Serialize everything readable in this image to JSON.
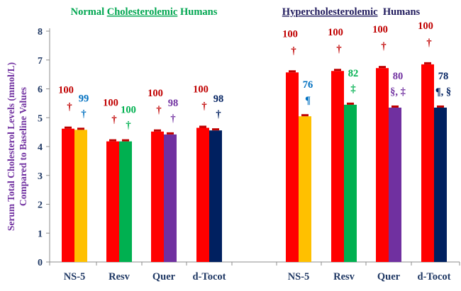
{
  "chart_data": {
    "type": "bar",
    "ylabel_line1": "Serum Total Cholesterol Levels (mmol/L)",
    "ylabel_line2": "Compared to Baseline Values",
    "ylim": [
      0,
      8
    ],
    "yticks": [
      0,
      1,
      2,
      3,
      4,
      5,
      6,
      7,
      8
    ],
    "grid": false,
    "groups": [
      {
        "title_parts": [
          {
            "text": "Normal ",
            "underline": false
          },
          {
            "text": "Cholesterolemic",
            "underline": true
          },
          {
            "text": " Humans",
            "underline": false
          }
        ],
        "title_color": "#00a650",
        "categories": [
          "NS-5",
          "Resv",
          "Quer",
          "d-Tocot"
        ],
        "baseline_values": [
          4.62,
          4.18,
          4.52,
          4.65
        ],
        "treated_values": [
          4.58,
          4.18,
          4.42,
          4.56
        ],
        "treated_colors": [
          "#ffc000",
          "#00b050",
          "#7030a0",
          "#002060"
        ],
        "baseline_labels": [
          "100",
          "100",
          "100",
          "100"
        ],
        "baseline_symbols": [
          "†",
          "†",
          "†",
          "†"
        ],
        "treated_labels": [
          "99",
          "100",
          "98",
          "98"
        ],
        "treated_symbols": [
          "†",
          "†",
          "†",
          "†"
        ],
        "treated_label_colors": [
          "#0070c0",
          "#00b050",
          "#7030a0",
          "#002060"
        ]
      },
      {
        "title_parts": [
          {
            "text": "Hypercholesterolemic",
            "underline": true
          },
          {
            "text": "  Humans",
            "underline": false
          }
        ],
        "title_color": "#1f1a5c",
        "categories": [
          "NS-5",
          "Resv",
          "Quer",
          "d-Tocot"
        ],
        "baseline_values": [
          6.57,
          6.62,
          6.72,
          6.85
        ],
        "treated_values": [
          5.05,
          5.45,
          5.35,
          5.35
        ],
        "treated_colors": [
          "#ffc000",
          "#00b050",
          "#7030a0",
          "#002060"
        ],
        "baseline_labels": [
          "100",
          "100",
          "100",
          "100"
        ],
        "baseline_symbols": [
          "†",
          "†",
          "†",
          "†"
        ],
        "treated_labels": [
          "76",
          "82",
          "80",
          "78"
        ],
        "treated_symbols": [
          "¶",
          "‡",
          "§, ‡",
          "¶, §"
        ],
        "treated_label_colors": [
          "#0070c0",
          "#00b050",
          "#7030a0",
          "#002060"
        ]
      }
    ],
    "baseline_color": "#ff0000",
    "baseline_label_color": "#c00000",
    "axis_label_color": "#7030a0",
    "tick_label_color": "#1f3864",
    "category_label_color": "#1f3864"
  }
}
